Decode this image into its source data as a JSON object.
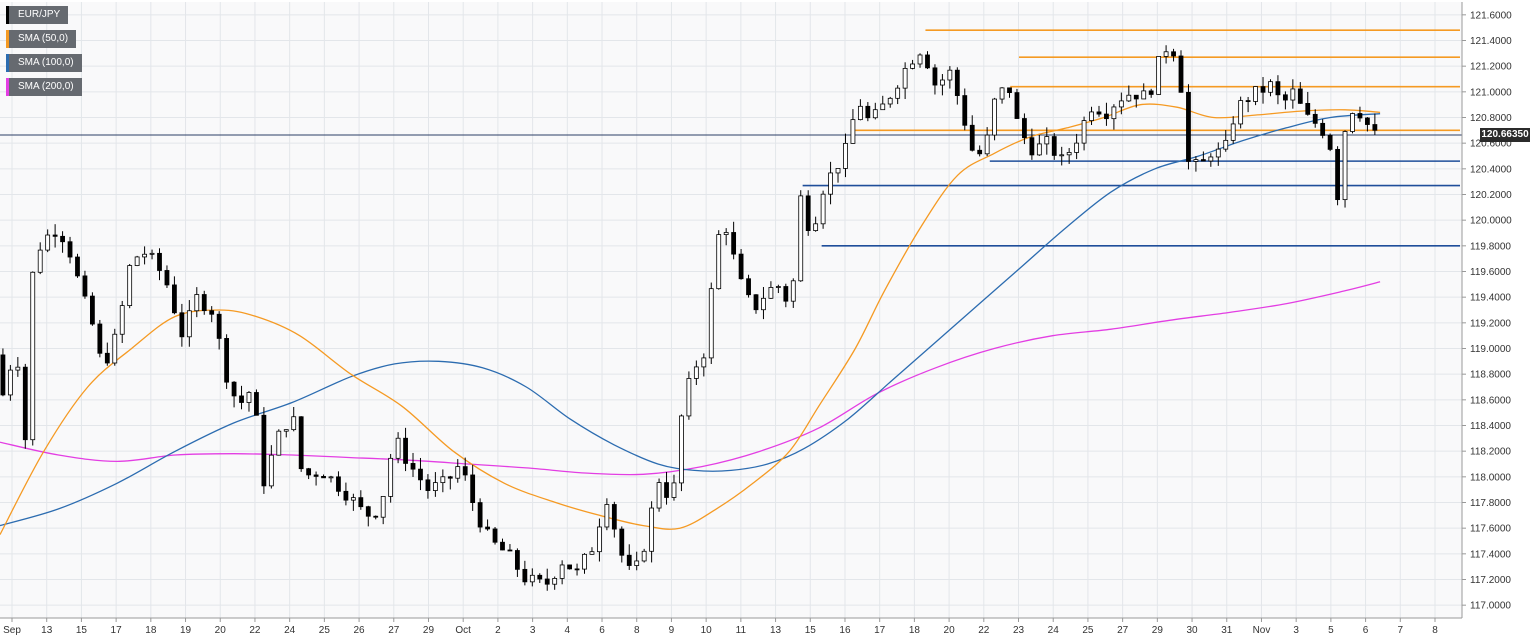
{
  "chart_data": {
    "type": "candlestick",
    "symbol": "EUR/JPY",
    "legend": [
      {
        "label": "EUR/JPY",
        "color": "#000000"
      },
      {
        "label": "SMA (50,0)",
        "color": "#f59a23"
      },
      {
        "label": "SMA (100,0)",
        "color": "#2c6cb0"
      },
      {
        "label": "SMA (200,0)",
        "color": "#e33ee3"
      }
    ],
    "current_price": "120.66350",
    "current_price_value": 120.6635,
    "ylim": [
      116.9,
      121.7
    ],
    "y_ticks": [
      "117.0000",
      "117.2000",
      "117.4000",
      "117.6000",
      "117.8000",
      "118.0000",
      "118.2000",
      "118.4000",
      "118.6000",
      "118.8000",
      "119.0000",
      "119.2000",
      "119.4000",
      "119.6000",
      "119.8000",
      "120.0000",
      "120.2000",
      "120.4000",
      "120.6000",
      "120.8000",
      "121.0000",
      "121.2000",
      "121.4000",
      "121.6000"
    ],
    "x_ticks": [
      "Sep",
      "13",
      "15",
      "17",
      "18",
      "19",
      "20",
      "22",
      "24",
      "25",
      "26",
      "27",
      "29",
      "Oct",
      "2",
      "3",
      "4",
      "6",
      "8",
      "9",
      "10",
      "11",
      "13",
      "15",
      "16",
      "17",
      "18",
      "20",
      "22",
      "23",
      "24",
      "25",
      "27",
      "29",
      "30",
      "31",
      "Nov",
      "3",
      "5",
      "6",
      "7",
      "8"
    ],
    "grid": true,
    "resistance_levels": [
      {
        "value": 121.48,
        "start": 0.633,
        "end": 1.0,
        "color": "#f59a23"
      },
      {
        "value": 121.27,
        "start": 0.697,
        "end": 1.0,
        "color": "#f59a23"
      },
      {
        "value": 121.04,
        "start": 0.691,
        "end": 1.0,
        "color": "#f59a23"
      },
      {
        "value": 120.7,
        "start": 0.585,
        "end": 1.0,
        "color": "#f59a23"
      }
    ],
    "support_levels": [
      {
        "value": 120.46,
        "start": 0.677,
        "end": 1.0,
        "color": "#1f4e9a"
      },
      {
        "value": 120.27,
        "start": 0.549,
        "end": 1.0,
        "color": "#1f4e9a"
      },
      {
        "value": 119.8,
        "start": 0.562,
        "end": 1.0,
        "color": "#1f4e9a"
      }
    ],
    "price_path": [
      {
        "t": 0.0,
        "p": 118.95
      },
      {
        "t": 0.008,
        "p": 118.6
      },
      {
        "t": 0.016,
        "p": 119.1
      },
      {
        "t": 0.022,
        "p": 118.2
      },
      {
        "t": 0.028,
        "p": 119.7
      },
      {
        "t": 0.035,
        "p": 119.85
      },
      {
        "t": 0.045,
        "p": 119.95
      },
      {
        "t": 0.055,
        "p": 119.7
      },
      {
        "t": 0.06,
        "p": 119.45
      },
      {
        "t": 0.068,
        "p": 119.2
      },
      {
        "t": 0.075,
        "p": 118.85
      },
      {
        "t": 0.085,
        "p": 119.1
      },
      {
        "t": 0.095,
        "p": 119.7
      },
      {
        "t": 0.105,
        "p": 119.75
      },
      {
        "t": 0.118,
        "p": 119.55
      },
      {
        "t": 0.13,
        "p": 119.1
      },
      {
        "t": 0.14,
        "p": 119.4
      },
      {
        "t": 0.15,
        "p": 119.3
      },
      {
        "t": 0.16,
        "p": 118.8
      },
      {
        "t": 0.168,
        "p": 118.55
      },
      {
        "t": 0.178,
        "p": 118.7
      },
      {
        "t": 0.185,
        "p": 117.95
      },
      {
        "t": 0.195,
        "p": 118.3
      },
      {
        "t": 0.205,
        "p": 118.5
      },
      {
        "t": 0.212,
        "p": 118.0
      },
      {
        "t": 0.225,
        "p": 118.05
      },
      {
        "t": 0.24,
        "p": 117.9
      },
      {
        "t": 0.255,
        "p": 117.7
      },
      {
        "t": 0.265,
        "p": 117.75
      },
      {
        "t": 0.275,
        "p": 118.3
      },
      {
        "t": 0.285,
        "p": 118.1
      },
      {
        "t": 0.298,
        "p": 117.9
      },
      {
        "t": 0.31,
        "p": 117.95
      },
      {
        "t": 0.32,
        "p": 118.1
      },
      {
        "t": 0.33,
        "p": 117.75
      },
      {
        "t": 0.34,
        "p": 117.5
      },
      {
        "t": 0.352,
        "p": 117.4
      },
      {
        "t": 0.365,
        "p": 117.2
      },
      {
        "t": 0.378,
        "p": 117.15
      },
      {
        "t": 0.39,
        "p": 117.35
      },
      {
        "t": 0.4,
        "p": 117.25
      },
      {
        "t": 0.41,
        "p": 117.45
      },
      {
        "t": 0.42,
        "p": 117.85
      },
      {
        "t": 0.43,
        "p": 117.4
      },
      {
        "t": 0.438,
        "p": 117.2
      },
      {
        "t": 0.448,
        "p": 117.55
      },
      {
        "t": 0.455,
        "p": 118.0
      },
      {
        "t": 0.465,
        "p": 117.8
      },
      {
        "t": 0.472,
        "p": 118.55
      },
      {
        "t": 0.48,
        "p": 118.85
      },
      {
        "t": 0.488,
        "p": 119.0
      },
      {
        "t": 0.495,
        "p": 119.85
      },
      {
        "t": 0.502,
        "p": 119.95
      },
      {
        "t": 0.51,
        "p": 119.55
      },
      {
        "t": 0.52,
        "p": 119.3
      },
      {
        "t": 0.53,
        "p": 119.45
      },
      {
        "t": 0.54,
        "p": 119.5
      },
      {
        "t": 0.546,
        "p": 119.25
      },
      {
        "t": 0.552,
        "p": 120.2
      },
      {
        "t": 0.56,
        "p": 119.9
      },
      {
        "t": 0.568,
        "p": 120.25
      },
      {
        "t": 0.576,
        "p": 120.4
      },
      {
        "t": 0.584,
        "p": 120.55
      },
      {
        "t": 0.592,
        "p": 120.95
      },
      {
        "t": 0.6,
        "p": 120.75
      },
      {
        "t": 0.61,
        "p": 120.9
      },
      {
        "t": 0.62,
        "p": 121.1
      },
      {
        "t": 0.628,
        "p": 121.25
      },
      {
        "t": 0.636,
        "p": 121.35
      },
      {
        "t": 0.645,
        "p": 121.05
      },
      {
        "t": 0.655,
        "p": 121.15
      },
      {
        "t": 0.662,
        "p": 120.9
      },
      {
        "t": 0.67,
        "p": 120.55
      },
      {
        "t": 0.678,
        "p": 120.5
      },
      {
        "t": 0.686,
        "p": 120.95
      },
      {
        "t": 0.695,
        "p": 121.05
      },
      {
        "t": 0.702,
        "p": 120.7
      },
      {
        "t": 0.712,
        "p": 120.55
      },
      {
        "t": 0.722,
        "p": 120.6
      },
      {
        "t": 0.732,
        "p": 120.45
      },
      {
        "t": 0.742,
        "p": 120.65
      },
      {
        "t": 0.752,
        "p": 120.9
      },
      {
        "t": 0.762,
        "p": 120.85
      },
      {
        "t": 0.77,
        "p": 120.95
      },
      {
        "t": 0.78,
        "p": 121.0
      },
      {
        "t": 0.79,
        "p": 120.95
      },
      {
        "t": 0.8,
        "p": 121.3
      },
      {
        "t": 0.806,
        "p": 121.4
      },
      {
        "t": 0.812,
        "p": 121.15
      },
      {
        "t": 0.818,
        "p": 120.45
      },
      {
        "t": 0.826,
        "p": 120.4
      },
      {
        "t": 0.834,
        "p": 120.55
      },
      {
        "t": 0.842,
        "p": 120.5
      },
      {
        "t": 0.85,
        "p": 120.85
      },
      {
        "t": 0.858,
        "p": 120.95
      },
      {
        "t": 0.866,
        "p": 121.0
      },
      {
        "t": 0.874,
        "p": 121.05
      },
      {
        "t": 0.882,
        "p": 120.9
      },
      {
        "t": 0.89,
        "p": 121.0
      },
      {
        "t": 0.898,
        "p": 120.8
      },
      {
        "t": 0.906,
        "p": 120.75
      },
      {
        "t": 0.914,
        "p": 120.65
      },
      {
        "t": 0.92,
        "p": 120.2
      },
      {
        "t": 0.926,
        "p": 120.8
      },
      {
        "t": 0.932,
        "p": 120.9
      },
      {
        "t": 0.938,
        "p": 120.8
      },
      {
        "t": 0.944,
        "p": 120.66
      }
    ],
    "sma50": [
      [
        0.0,
        117.55
      ],
      [
        0.03,
        118.2
      ],
      [
        0.06,
        118.7
      ],
      [
        0.09,
        119.0
      ],
      [
        0.12,
        119.25
      ],
      [
        0.15,
        119.3
      ],
      [
        0.175,
        119.25
      ],
      [
        0.205,
        119.1
      ],
      [
        0.24,
        118.8
      ],
      [
        0.275,
        118.55
      ],
      [
        0.31,
        118.2
      ],
      [
        0.345,
        117.95
      ],
      [
        0.38,
        117.8
      ],
      [
        0.41,
        117.7
      ],
      [
        0.44,
        117.62
      ],
      [
        0.465,
        117.6
      ],
      [
        0.49,
        117.75
      ],
      [
        0.515,
        117.95
      ],
      [
        0.54,
        118.2
      ],
      [
        0.56,
        118.55
      ],
      [
        0.585,
        119.0
      ],
      [
        0.605,
        119.45
      ],
      [
        0.63,
        119.95
      ],
      [
        0.655,
        120.35
      ],
      [
        0.68,
        120.52
      ],
      [
        0.705,
        120.65
      ],
      [
        0.73,
        120.72
      ],
      [
        0.755,
        120.8
      ],
      [
        0.78,
        120.9
      ],
      [
        0.805,
        120.88
      ],
      [
        0.83,
        120.8
      ],
      [
        0.86,
        120.82
      ],
      [
        0.89,
        120.85
      ],
      [
        0.92,
        120.86
      ],
      [
        0.944,
        120.84
      ]
    ],
    "sma100": [
      [
        0.0,
        117.62
      ],
      [
        0.04,
        117.75
      ],
      [
        0.08,
        117.95
      ],
      [
        0.12,
        118.2
      ],
      [
        0.16,
        118.42
      ],
      [
        0.2,
        118.58
      ],
      [
        0.24,
        118.78
      ],
      [
        0.27,
        118.88
      ],
      [
        0.3,
        118.9
      ],
      [
        0.33,
        118.85
      ],
      [
        0.36,
        118.7
      ],
      [
        0.39,
        118.45
      ],
      [
        0.42,
        118.25
      ],
      [
        0.45,
        118.1
      ],
      [
        0.475,
        118.05
      ],
      [
        0.5,
        118.05
      ],
      [
        0.525,
        118.1
      ],
      [
        0.55,
        118.22
      ],
      [
        0.58,
        118.45
      ],
      [
        0.61,
        118.75
      ],
      [
        0.64,
        119.05
      ],
      [
        0.67,
        119.35
      ],
      [
        0.7,
        119.65
      ],
      [
        0.73,
        119.95
      ],
      [
        0.76,
        120.22
      ],
      [
        0.79,
        120.4
      ],
      [
        0.82,
        120.5
      ],
      [
        0.85,
        120.62
      ],
      [
        0.88,
        120.72
      ],
      [
        0.91,
        120.8
      ],
      [
        0.944,
        120.83
      ]
    ],
    "sma200": [
      [
        0.0,
        118.27
      ],
      [
        0.04,
        118.17
      ],
      [
        0.08,
        118.12
      ],
      [
        0.12,
        118.17
      ],
      [
        0.16,
        118.18
      ],
      [
        0.2,
        118.17
      ],
      [
        0.24,
        118.15
      ],
      [
        0.28,
        118.13
      ],
      [
        0.32,
        118.1
      ],
      [
        0.36,
        118.07
      ],
      [
        0.4,
        118.03
      ],
      [
        0.44,
        118.02
      ],
      [
        0.48,
        118.08
      ],
      [
        0.52,
        118.2
      ],
      [
        0.56,
        118.38
      ],
      [
        0.6,
        118.65
      ],
      [
        0.64,
        118.85
      ],
      [
        0.68,
        119.0
      ],
      [
        0.72,
        119.1
      ],
      [
        0.76,
        119.15
      ],
      [
        0.8,
        119.22
      ],
      [
        0.84,
        119.28
      ],
      [
        0.88,
        119.35
      ],
      [
        0.92,
        119.45
      ],
      [
        0.944,
        119.52
      ]
    ]
  }
}
